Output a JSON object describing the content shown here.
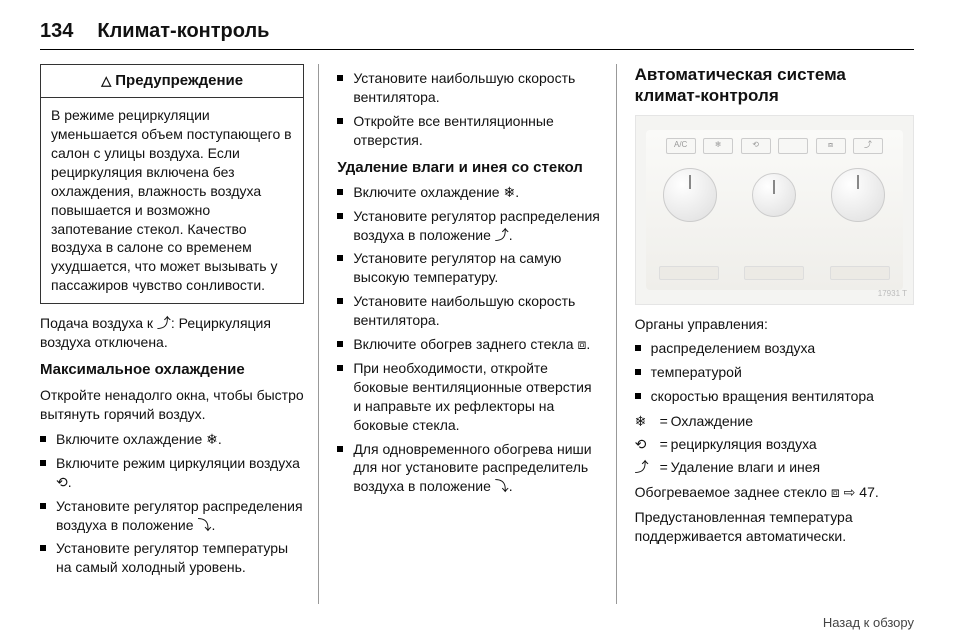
{
  "page_number": "134",
  "section_title": "Климат-контроль",
  "col1": {
    "warning_label": "Предупреждение",
    "warning_symbol": "△",
    "warning_body": "В режиме рециркуляции уменьшается объем поступающего в салон с улицы воздуха. Если рециркуляция включена без охлаждения, влажность воздуха повышается и возможно запотевание стекол. Качество воздуха в салоне со временем ухудшается, что может вызывать у пассажиров чувство сонливости.",
    "para_after_warning_pre": "Подача воздуха к ",
    "para_after_warning_glyph": "⤴",
    "para_after_warning_post": ": Рециркуляция воздуха отключена.",
    "sub1": "Максимальное охлаждение",
    "sub1_para": "Откройте ненадолго окна, чтобы быстро вытянуть горячий воздух.",
    "b1": "Включите охлаждение ",
    "b1_glyph": "❄",
    "b2": "Включите режим циркуляции воздуха ",
    "b2_glyph": "⟲",
    "b3": "Установите регулятор распределения воздуха в положение ",
    "b3_glyph": "⤵",
    "b4": "Установите регулятор температуры на самый холодный уровень."
  },
  "col2": {
    "b5": "Установите наибольшую скорость вентилятора.",
    "b6": "Откройте все вентиляционные отверстия.",
    "sub2": "Удаление влаги и инея со стекол",
    "c1": "Включите охлаждение ",
    "c1_glyph": "❄",
    "c2": "Установите регулятор распределения воздуха в положение ",
    "c2_glyph": "⤴",
    "c3": "Установите регулятор на самую высокую температуру.",
    "c4": "Установите наибольшую скорость вентилятора.",
    "c5": "Включите обогрев заднего стекла ",
    "c5_glyph": "⧈",
    "c6": "При необходимости, откройте боковые вентиляционные отверстия и направьте их рефлекторы на боковые стекла.",
    "c7": "Для одновременного обогрева ниши для ног установите распределитель воздуха в положение ",
    "c7_glyph": "⤵"
  },
  "col3": {
    "title": "Автоматическая система климат-контроля",
    "illus_btn": [
      "A/C",
      "❄",
      "⟲",
      "",
      "⧈",
      "⤴"
    ],
    "illus_tag": "17931 T",
    "controls_label": "Органы управления:",
    "d1": "распределением воздуха",
    "d2": "температурой",
    "d3": "скоростью вращения вентилятора",
    "legend": [
      {
        "sym": "❄",
        "txt": "Охлаждение"
      },
      {
        "sym": "⟲",
        "txt": "рециркуляция воздуха"
      },
      {
        "sym": "⤴",
        "txt": "Удаление влаги и инея"
      }
    ],
    "tail1_pre": "Обогреваемое заднее стекло ",
    "tail1_glyph": "⧈",
    "tail1_post": " ⇨ 47.",
    "tail2": "Предустановленная температура поддерживается автоматически."
  },
  "back_link": "Назад к обзору"
}
